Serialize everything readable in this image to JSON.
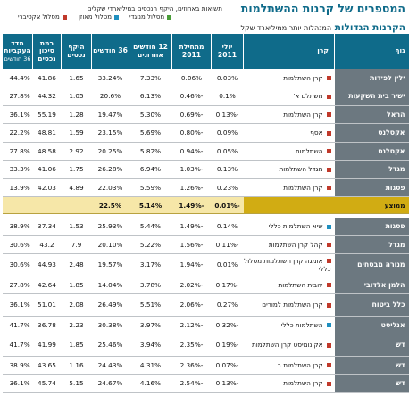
{
  "header": {
    "title": "המספרים של קרנות ההשתלמות",
    "subtitle": "תשואות באחוזים, היקף הנכסים במיליארדי שקלים",
    "legend": [
      {
        "label": "מסלול אקטיברי",
        "color": "#c0392b"
      },
      {
        "label": "מסלול מאוזן",
        "color": "#1f8fbf"
      },
      {
        "label": "מסלול מנוגדי",
        "color": "#4a9e3a"
      }
    ],
    "section_title": "הקרנות הגדולות",
    "section_subtitle": "המנהלות יותר ממיליארד שקל"
  },
  "columns": {
    "group": "גוף",
    "fund": "קרן",
    "ytd": "יולי 2011",
    "since_start": "מתחילת 2011",
    "m12": "12 חודשים אחרונים",
    "m36": "36 חודשים",
    "assets": "היקף נכסים",
    "risk": "רמת סיכון נכסים",
    "sharpe": "מדד העקביות",
    "sharpe_note": "36 חודשים"
  },
  "top_rows": [
    {
      "group": "ילין לפידות",
      "fund": "קרן השתלמות",
      "ytd": "0.03%",
      "since": "0.06%",
      "m12": "7.33%",
      "m36": "33.24%",
      "assets": "1.65",
      "risk": "41.86",
      "idx": "44.4%"
    },
    {
      "group": "ישיר בית השקעות",
      "fund": "משתלם א'",
      "ytd": "0.1%",
      "since": "-0.46%",
      "m12": "6.13%",
      "m36": "20.6%",
      "assets": "1.05",
      "risk": "44.32",
      "idx": "27.8%"
    },
    {
      "group": "הראל",
      "fund": "קרן השתלמות",
      "ytd": "-0.13%",
      "since": "-0.69%",
      "m12": "5.30%",
      "m36": "19.47%",
      "assets": "1.28",
      "risk": "55.19",
      "idx": "36.1%"
    },
    {
      "group": "אקסלנס",
      "fund": "אסף",
      "ytd": "0.09%",
      "since": "-0.80%",
      "m12": "5.69%",
      "m36": "23.15%",
      "assets": "1.59",
      "risk": "48.81",
      "idx": "22.2%"
    },
    {
      "group": "אקסלנס",
      "fund": "השתלמות",
      "ytd": "0.05%",
      "since": "-0.94%",
      "m12": "5.82%",
      "m36": "20.25%",
      "assets": "2.92",
      "risk": "48.58",
      "idx": "27.8%"
    },
    {
      "group": "מגדל",
      "fund": "מגדל השתלמות",
      "ytd": "0.13%",
      "since": "-1.03%",
      "m12": "6.94%",
      "m36": "26.28%",
      "assets": "1.75",
      "risk": "41.06",
      "idx": "33.3%"
    },
    {
      "group": "פסגות",
      "fund": "קרן השתלמות",
      "ytd": "0.23%",
      "since": "-1.26%",
      "m12": "5.59%",
      "m36": "22.03%",
      "assets": "4.89",
      "risk": "42.03",
      "idx": "13.9%"
    }
  ],
  "average": {
    "label": "ממוצע",
    "ytd": "-0.01%",
    "since": "-1.49%",
    "m12": "5.14%",
    "m36": "22.5%"
  },
  "bottom_rows": [
    {
      "group": "פסגות",
      "fund": "שיא השתלמות כללי",
      "ytd": "0.14%",
      "since": "-1.49%",
      "m12": "5.44%",
      "m36": "25.93%",
      "assets": "1.53",
      "risk": "37.34",
      "idx": "38.9%",
      "tall": false
    },
    {
      "group": "מגדל",
      "fund": "קהל קרן השתלמות",
      "ytd": "-0.11%",
      "since": "-1.56%",
      "m12": "5.22%",
      "m36": "20.10%",
      "assets": "7.9",
      "risk": "43.2",
      "idx": "30.6%",
      "tall": false
    },
    {
      "group": "מנורה מבטחים",
      "fund": "אומגה קרן השתלמות מסלול כללי",
      "ytd": "0.01%",
      "since": "-1.94%",
      "m12": "3.17%",
      "m36": "19.57%",
      "assets": "2.48",
      "risk": "44.93",
      "idx": "30.6%",
      "tall": true
    },
    {
      "group": "הלמן אלדובי",
      "fund": "יהבית השתלמות",
      "ytd": "-0.17%",
      "since": "-2.02%",
      "m12": "3.78%",
      "m36": "14.04%",
      "assets": "1.85",
      "risk": "42.64",
      "idx": "27.8%",
      "tall": false
    },
    {
      "group": "כלל ביטוח",
      "fund": "קרן השתלמות למורים",
      "ytd": "0.27%",
      "since": "-2.06%",
      "m12": "5.51%",
      "m36": "26.49%",
      "assets": "2.08",
      "risk": "51.01",
      "idx": "36.1%",
      "tall": true
    },
    {
      "group": "אנליסט",
      "fund": "השתלמות כללי",
      "ytd": "-0.32%",
      "since": "-2.12%",
      "m12": "3.97%",
      "m36": "30.38%",
      "assets": "2.23",
      "risk": "36.78",
      "idx": "41.7%",
      "tall": false
    },
    {
      "group": "דש",
      "fund": "אקונומיסט קרן השתלמות",
      "ytd": "-0.19%",
      "since": "-2.35%",
      "m12": "3.94%",
      "m36": "25.46%",
      "assets": "1.85",
      "risk": "41.99",
      "idx": "41.7%",
      "tall": true
    },
    {
      "group": "דש",
      "fund": "קרן השתלמות ב",
      "ytd": "-0.07%",
      "since": "-2.36%",
      "m12": "4.31%",
      "m36": "24.43%",
      "assets": "1.16",
      "risk": "43.65",
      "idx": "38.9%",
      "tall": false
    },
    {
      "group": "דש",
      "fund": "קרן השתלמות",
      "ytd": "-0.13%",
      "since": "-2.54%",
      "m12": "4.16%",
      "m36": "24.67%",
      "assets": "5.15",
      "risk": "45.74",
      "idx": "36.1%",
      "tall": false
    }
  ],
  "colors": {
    "header": "#0f6b8a",
    "group_cell": "#6c7880",
    "average_row": "#f6e7a8",
    "average_label": "#d1ac13",
    "fund_marker": "#c0392b"
  }
}
